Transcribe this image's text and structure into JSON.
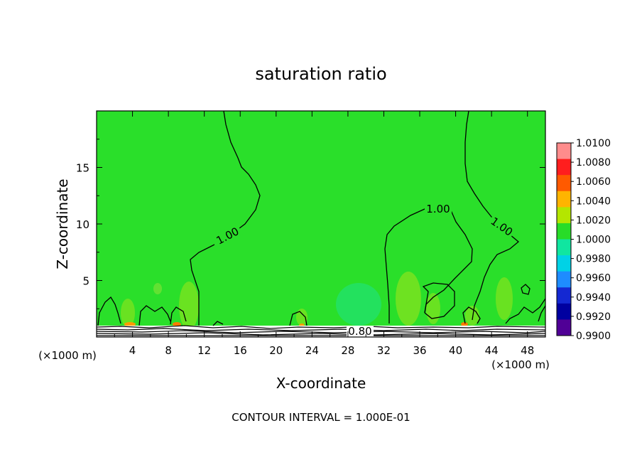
{
  "chart_data": {
    "type": "heatmap",
    "title": "saturation ratio",
    "xlabel": "X-coordinate",
    "ylabel": "Z-coordinate",
    "x_unit_left": "(×1000 m)",
    "x_unit_right": "(×1000 m)",
    "footer": "CONTOUR INTERVAL = 1.000E-01",
    "xlim": [
      0,
      50
    ],
    "ylim": [
      0,
      20
    ],
    "x_ticks": [
      "4",
      "8",
      "12",
      "16",
      "20",
      "24",
      "28",
      "32",
      "36",
      "40",
      "44",
      "48"
    ],
    "y_ticks": [
      "5",
      "10",
      "15"
    ],
    "colorbar": {
      "labels": [
        "1.0100",
        "1.0080",
        "1.0060",
        "1.0040",
        "1.0020",
        "1.0000",
        "0.9980",
        "0.9960",
        "0.9940",
        "0.9920",
        "0.9900"
      ],
      "colors": [
        "#ff8c8c",
        "#ff1e1e",
        "#ff5a00",
        "#ffb400",
        "#b4e600",
        "#28dc28",
        "#10e6a0",
        "#00d2e6",
        "#1e8cff",
        "#1428d2",
        "#0000a0",
        "#500096"
      ]
    },
    "contour_labels": [
      "1.00",
      "1.00",
      "1.00",
      "0.80"
    ],
    "background_value": 1.0,
    "background_color": "#2adf2a"
  }
}
